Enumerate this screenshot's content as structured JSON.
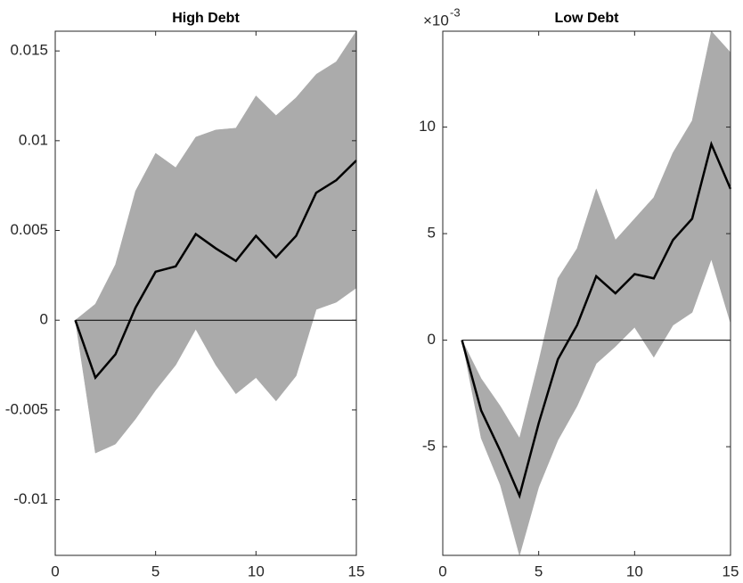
{
  "chart_data": [
    {
      "type": "line",
      "title": "High Debt",
      "x": [
        1,
        2,
        3,
        4,
        5,
        6,
        7,
        8,
        9,
        10,
        11,
        12,
        13,
        14,
        15
      ],
      "values": [
        0,
        -0.0032,
        -0.0019,
        0.0007,
        0.0027,
        0.003,
        0.0048,
        0.004,
        0.0033,
        0.0047,
        0.0035,
        0.0047,
        0.0071,
        0.0078,
        0.0089
      ],
      "upper": [
        0,
        0.0009,
        0.0031,
        0.0072,
        0.0093,
        0.0085,
        0.0102,
        0.0106,
        0.0107,
        0.0125,
        0.0114,
        0.0124,
        0.0137,
        0.0144,
        0.0161
      ],
      "lower": [
        0,
        -0.0074,
        -0.0069,
        -0.0055,
        -0.0039,
        -0.0025,
        -0.0005,
        -0.0025,
        -0.0041,
        -0.0032,
        -0.0045,
        -0.0031,
        0.0006,
        0.001,
        0.0018
      ],
      "color": "#000000",
      "band_color": "#ababab",
      "xlim": [
        0,
        15
      ],
      "xticks": [
        0,
        5,
        10,
        15
      ],
      "ylim": [
        -0.0131,
        0.0161
      ],
      "yticks": [
        -0.01,
        -0.005,
        0,
        0.005,
        0.01,
        0.015
      ],
      "zero_line": true
    },
    {
      "type": "line",
      "title": "Low Debt",
      "exponent_base": "×10",
      "exponent": "-3",
      "x": [
        1,
        2,
        3,
        4,
        5,
        6,
        7,
        8,
        9,
        10,
        11,
        12,
        13,
        14,
        15
      ],
      "values": [
        0,
        -3.3,
        -5.2,
        -7.3,
        -3.9,
        -0.9,
        0.7,
        3.0,
        2.2,
        3.1,
        2.9,
        4.7,
        5.7,
        9.2,
        7.1
      ],
      "upper": [
        0,
        -1.8,
        -3.1,
        -4.6,
        -1.0,
        2.9,
        4.3,
        7.1,
        4.7,
        5.7,
        6.7,
        8.8,
        10.3,
        14.5,
        13.5
      ],
      "lower": [
        0,
        -4.6,
        -6.8,
        -10.1,
        -6.9,
        -4.7,
        -3.1,
        -1.1,
        -0.3,
        0.6,
        -0.8,
        0.7,
        1.3,
        3.8,
        0.8
      ],
      "color": "#000000",
      "band_color": "#ababab",
      "xlim": [
        0,
        15
      ],
      "xticks": [
        0,
        5,
        10,
        15
      ],
      "ylim": [
        -10.1,
        14.5
      ],
      "yticks": [
        -5,
        0,
        5,
        10
      ],
      "zero_line": true
    }
  ]
}
